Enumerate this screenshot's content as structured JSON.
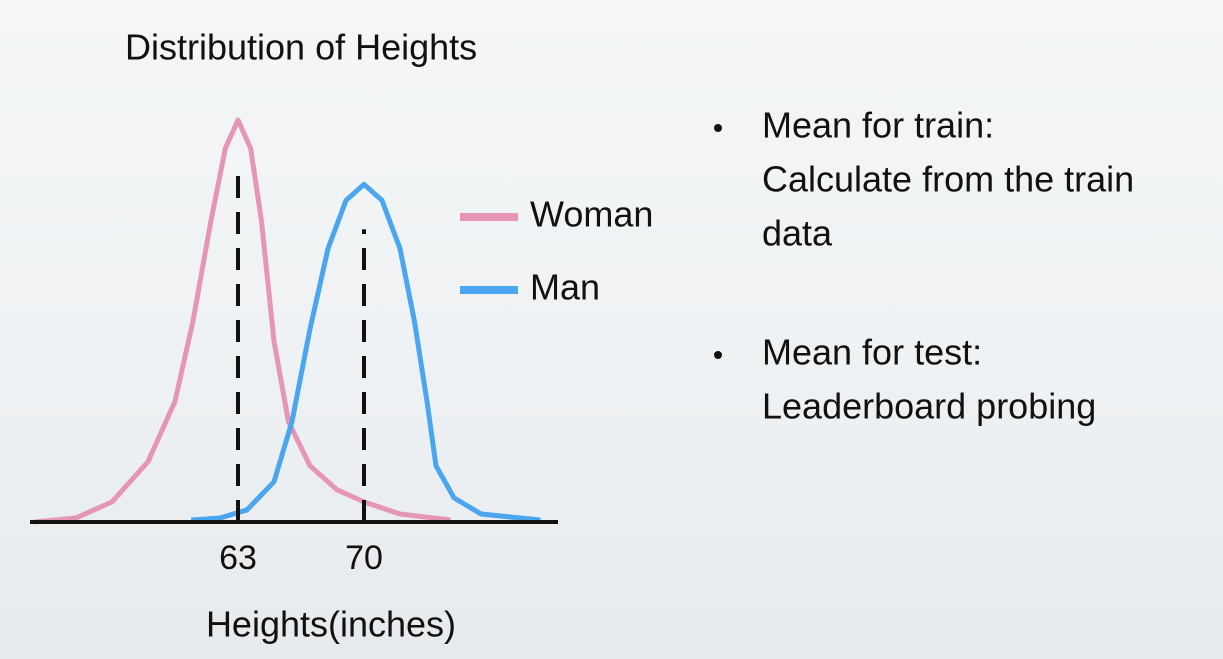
{
  "chart_data": {
    "type": "line",
    "title": "Distribution of Heights",
    "x_label": "Heights(inches)",
    "xlim": [
      51.5,
      81
    ],
    "ylim": [
      0,
      1
    ],
    "xticks": [
      63,
      70
    ],
    "series": [
      {
        "name": "Woman",
        "color": "#e596b8",
        "x": [
          51.7,
          54,
          56,
          58,
          59.5,
          60.5,
          61.5,
          62.3,
          63,
          63.7,
          64.3,
          65,
          65.8,
          67,
          68.5,
          70,
          72,
          74.8
        ],
        "values": [
          0,
          0.01,
          0.05,
          0.15,
          0.3,
          0.5,
          0.75,
          0.93,
          1.0,
          0.93,
          0.75,
          0.45,
          0.25,
          0.14,
          0.08,
          0.05,
          0.02,
          0.005
        ]
      },
      {
        "name": "Man",
        "color": "#4ba6f0",
        "x": [
          60.4,
          62,
          63.5,
          65,
          66,
          67,
          68,
          69,
          70,
          71,
          72,
          72.8,
          73.5,
          74,
          75,
          76.5,
          79.8
        ],
        "values": [
          0.005,
          0.01,
          0.03,
          0.1,
          0.25,
          0.48,
          0.68,
          0.8,
          0.84,
          0.8,
          0.68,
          0.5,
          0.3,
          0.14,
          0.06,
          0.02,
          0.005
        ]
      }
    ]
  },
  "bullets": [
    [
      "Mean for train:",
      "Calculate from the train",
      "data"
    ],
    [
      "Mean for test:",
      "Leaderboard probing"
    ]
  ]
}
